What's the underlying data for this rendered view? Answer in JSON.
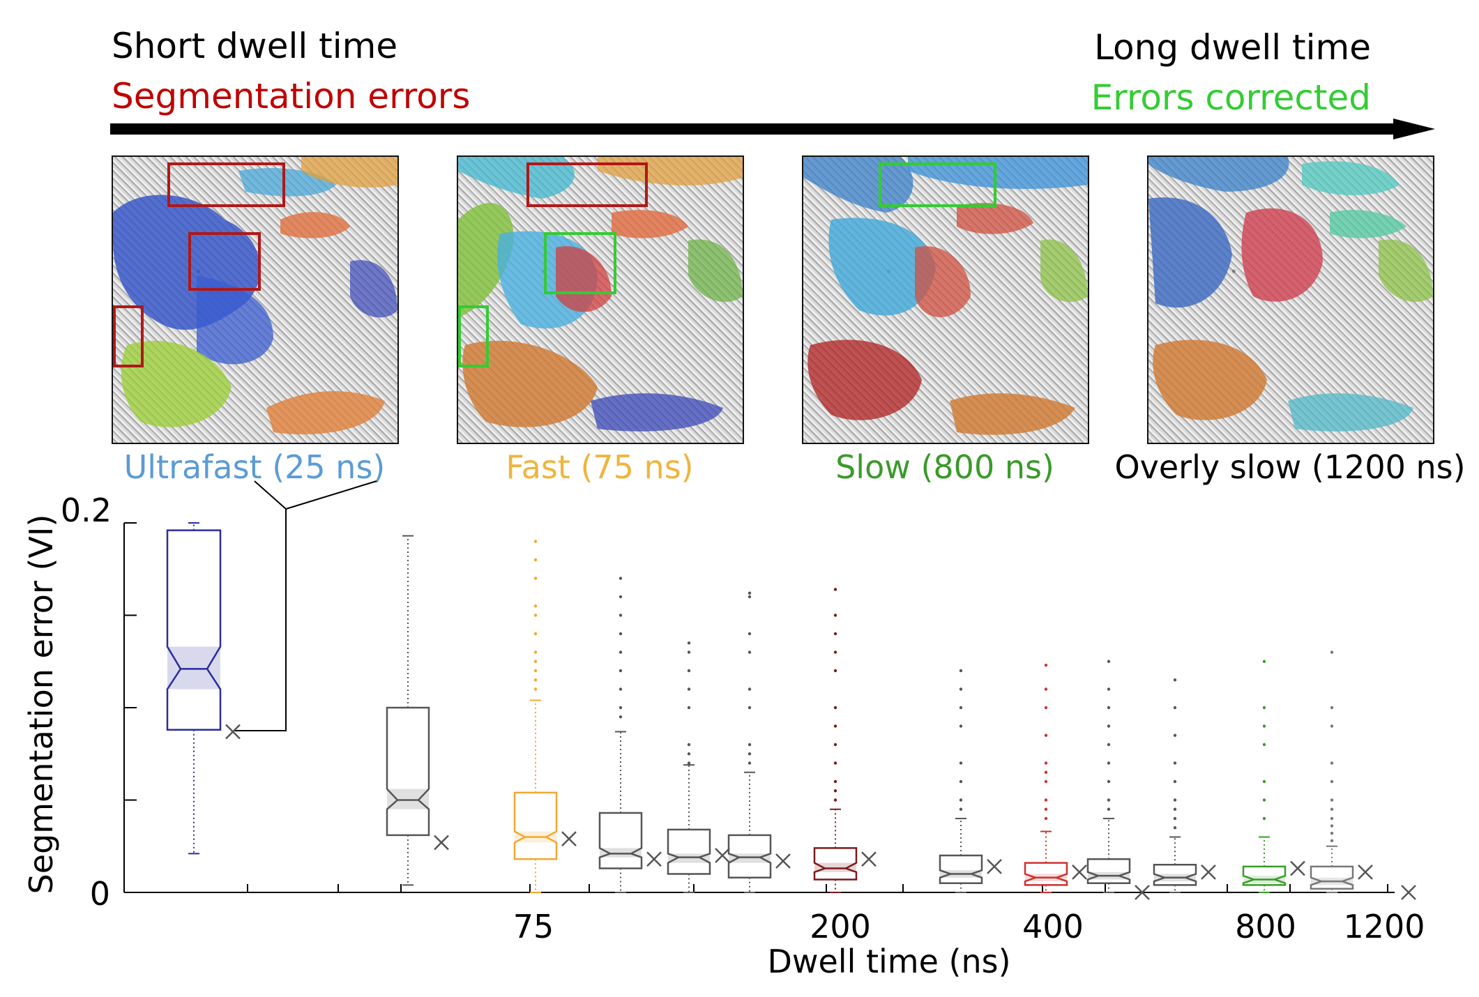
{
  "header": {
    "short_dwell": "Short dwell time",
    "segmentation_errors": "Segmentation errors",
    "long_dwell": "Long dwell time",
    "errors_corrected": "Errors corrected"
  },
  "panels": [
    {
      "label": "Ultrafast (25 ns)",
      "color": "#5b9bd5"
    },
    {
      "label": "Fast (75 ns)",
      "color": "#f0b43c"
    },
    {
      "label": "Slow (800 ns)",
      "color": "#3a9a2a"
    },
    {
      "label": "Overly slow (1200 ns)",
      "color": "#000000"
    }
  ],
  "chart_data": {
    "type": "box",
    "ylabel": "Segmentation error (VI)",
    "xlabel": "Dwell time (ns)",
    "ylim": [
      0,
      0.2
    ],
    "yticks": [
      "0",
      "0.2"
    ],
    "xticks": [
      "75",
      "200",
      "400",
      "800",
      "1200"
    ],
    "boxes": [
      {
        "color": "#2b2b9e",
        "q1": 0.088,
        "median": 0.121,
        "q3": 0.196,
        "whisker_low": 0.021,
        "whisker_high": 0.2,
        "notch_low": 0.11,
        "notch_high": 0.133,
        "mean": 0.087,
        "outliers": []
      },
      {
        "color": "#555555",
        "q1": 0.031,
        "median": 0.05,
        "q3": 0.1,
        "whisker_low": 0.004,
        "whisker_high": 0.193,
        "notch_low": 0.045,
        "notch_high": 0.056,
        "mean": 0.027,
        "outliers": []
      },
      {
        "color": "#f0a830",
        "q1": 0.018,
        "median": 0.03,
        "q3": 0.054,
        "whisker_low": 0.0,
        "whisker_high": 0.104,
        "notch_low": 0.027,
        "notch_high": 0.033,
        "mean": 0.029,
        "outliers": [
          0.11,
          0.115,
          0.12,
          0.125,
          0.13,
          0.14,
          0.15,
          0.155,
          0.17,
          0.18,
          0.19
        ]
      },
      {
        "color": "#555555",
        "q1": 0.013,
        "median": 0.021,
        "q3": 0.043,
        "whisker_low": 0.0,
        "whisker_high": 0.087,
        "notch_low": 0.019,
        "notch_high": 0.024,
        "mean": 0.018,
        "outliers": [
          0.095,
          0.1,
          0.11,
          0.12,
          0.13,
          0.14,
          0.15,
          0.16,
          0.17
        ]
      },
      {
        "color": "#555555",
        "q1": 0.01,
        "median": 0.019,
        "q3": 0.034,
        "whisker_low": 0.0,
        "whisker_high": 0.069,
        "notch_low": 0.016,
        "notch_high": 0.021,
        "mean": 0.02,
        "outliers": [
          0.07,
          0.075,
          0.08,
          0.1,
          0.11,
          0.12,
          0.13,
          0.135
        ]
      },
      {
        "color": "#555555",
        "q1": 0.008,
        "median": 0.019,
        "q3": 0.031,
        "whisker_low": 0.0,
        "whisker_high": 0.065,
        "notch_low": 0.016,
        "notch_high": 0.021,
        "mean": 0.017,
        "outliers": [
          0.07,
          0.075,
          0.08,
          0.1,
          0.11,
          0.13,
          0.14,
          0.16,
          0.162
        ]
      },
      {
        "color": "#7a1a1a",
        "q1": 0.007,
        "median": 0.013,
        "q3": 0.024,
        "whisker_low": 0.0,
        "whisker_high": 0.045,
        "notch_low": 0.011,
        "notch_high": 0.016,
        "mean": 0.018,
        "outliers": [
          0.05,
          0.055,
          0.06,
          0.07,
          0.08,
          0.09,
          0.1,
          0.12,
          0.13,
          0.14,
          0.15,
          0.164
        ]
      },
      {
        "color": "#555555",
        "q1": 0.005,
        "median": 0.01,
        "q3": 0.02,
        "whisker_low": 0.0,
        "whisker_high": 0.04,
        "notch_low": 0.008,
        "notch_high": 0.012,
        "mean": 0.014,
        "outliers": [
          0.045,
          0.05,
          0.06,
          0.07,
          0.09,
          0.1,
          0.11,
          0.12
        ]
      },
      {
        "color": "#d03030",
        "q1": 0.004,
        "median": 0.008,
        "q3": 0.016,
        "whisker_low": 0.0,
        "whisker_high": 0.033,
        "notch_low": 0.006,
        "notch_high": 0.01,
        "mean": 0.011,
        "outliers": [
          0.04,
          0.045,
          0.05,
          0.06,
          0.065,
          0.07,
          0.085,
          0.1,
          0.11,
          0.123
        ]
      },
      {
        "color": "#555555",
        "q1": 0.005,
        "median": 0.009,
        "q3": 0.018,
        "whisker_low": 0.0,
        "whisker_high": 0.04,
        "notch_low": 0.007,
        "notch_high": 0.011,
        "mean": 0.0,
        "outliers": [
          0.045,
          0.05,
          0.06,
          0.07,
          0.08,
          0.09,
          0.1,
          0.11,
          0.125
        ]
      },
      {
        "color": "#555555",
        "q1": 0.004,
        "median": 0.008,
        "q3": 0.015,
        "whisker_low": 0.0,
        "whisker_high": 0.03,
        "notch_low": 0.006,
        "notch_high": 0.01,
        "mean": 0.011,
        "outliers": [
          0.035,
          0.04,
          0.045,
          0.05,
          0.06,
          0.07,
          0.085,
          0.1,
          0.115
        ]
      },
      {
        "color": "#3a9a2a",
        "q1": 0.004,
        "median": 0.007,
        "q3": 0.014,
        "whisker_low": 0.0,
        "whisker_high": 0.03,
        "notch_low": 0.005,
        "notch_high": 0.009,
        "mean": 0.013,
        "outliers": [
          0.04,
          0.05,
          0.06,
          0.08,
          0.09,
          0.1,
          0.125
        ]
      },
      {
        "color": "#777777",
        "q1": 0.002,
        "median": 0.006,
        "q3": 0.014,
        "whisker_low": 0.0,
        "whisker_high": 0.025,
        "notch_low": 0.004,
        "notch_high": 0.008,
        "mean": 0.011,
        "outliers": [
          0.028,
          0.032,
          0.036,
          0.04,
          0.045,
          0.05,
          0.06,
          0.07,
          0.09,
          0.1,
          0.13
        ]
      },
      {
        "color": "#555555",
        "q1": 0.0,
        "median": 0.0,
        "q3": 0.0,
        "whisker_low": 0.0,
        "whisker_high": 0.0,
        "notch_low": 0.0,
        "notch_high": 0.0,
        "mean": 0.0,
        "outliers": []
      }
    ]
  }
}
